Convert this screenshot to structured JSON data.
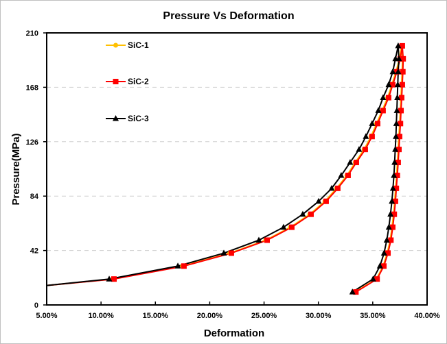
{
  "chart_data": {
    "type": "line",
    "title": "Pressure Vs Deformation",
    "xlabel": "Deformation",
    "ylabel": "Pressure(MPa)",
    "xlim": [
      5,
      40
    ],
    "ylim": [
      0,
      210
    ],
    "x_ticks": [
      "5.00%",
      "10.00%",
      "15.00%",
      "20.00%",
      "25.00%",
      "30.00%",
      "35.00%",
      "40.00%"
    ],
    "y_ticks": [
      "0",
      "42",
      "84",
      "126",
      "168",
      "210"
    ],
    "grid": "horizontal dashed",
    "legend_position": "top-left",
    "x_unit": "percent",
    "series": [
      {
        "name": "SiC-1",
        "color": "#FFC000",
        "marker": "circle",
        "loading": [
          [
            5.0,
            15
          ],
          [
            11.1,
            20
          ],
          [
            17.5,
            30
          ],
          [
            21.85,
            40
          ],
          [
            25.15,
            50
          ],
          [
            27.42,
            60
          ],
          [
            29.2,
            70
          ],
          [
            30.6,
            80
          ],
          [
            31.67,
            90
          ],
          [
            32.62,
            100
          ],
          [
            33.39,
            110
          ],
          [
            34.2,
            120
          ],
          [
            34.84,
            130
          ],
          [
            35.35,
            140
          ],
          [
            35.86,
            150
          ],
          [
            36.37,
            160
          ],
          [
            36.76,
            170
          ],
          [
            37.14,
            180
          ],
          [
            37.46,
            190
          ],
          [
            37.65,
            200
          ]
        ],
        "unloading": [
          [
            37.73,
            190
          ],
          [
            37.7,
            180
          ],
          [
            37.65,
            170
          ],
          [
            37.59,
            160
          ],
          [
            37.53,
            150
          ],
          [
            37.48,
            140
          ],
          [
            37.4,
            130
          ],
          [
            37.34,
            120
          ],
          [
            37.27,
            110
          ],
          [
            37.19,
            100
          ],
          [
            37.1,
            90
          ],
          [
            37.02,
            80
          ],
          [
            36.91,
            70
          ],
          [
            36.77,
            60
          ],
          [
            36.6,
            50
          ],
          [
            36.33,
            40
          ],
          [
            35.95,
            30
          ],
          [
            35.33,
            20
          ],
          [
            33.38,
            10
          ]
        ]
      },
      {
        "name": "SiC-2",
        "color": "#FF0000",
        "marker": "square",
        "loading": [
          [
            5.0,
            15
          ],
          [
            11.19,
            20
          ],
          [
            17.63,
            30
          ],
          [
            21.99,
            40
          ],
          [
            25.28,
            50
          ],
          [
            27.55,
            60
          ],
          [
            29.32,
            70
          ],
          [
            30.71,
            80
          ],
          [
            31.78,
            90
          ],
          [
            32.73,
            100
          ],
          [
            33.49,
            110
          ],
          [
            34.31,
            120
          ],
          [
            34.94,
            130
          ],
          [
            35.45,
            140
          ],
          [
            35.95,
            150
          ],
          [
            36.46,
            160
          ],
          [
            36.84,
            170
          ],
          [
            37.22,
            180
          ],
          [
            37.53,
            190
          ],
          [
            37.72,
            200
          ]
        ],
        "unloading": [
          [
            37.8,
            190
          ],
          [
            37.77,
            180
          ],
          [
            37.72,
            170
          ],
          [
            37.66,
            160
          ],
          [
            37.6,
            150
          ],
          [
            37.55,
            140
          ],
          [
            37.47,
            130
          ],
          [
            37.41,
            120
          ],
          [
            37.34,
            110
          ],
          [
            37.26,
            100
          ],
          [
            37.17,
            90
          ],
          [
            37.09,
            80
          ],
          [
            36.98,
            70
          ],
          [
            36.84,
            60
          ],
          [
            36.67,
            50
          ],
          [
            36.4,
            40
          ],
          [
            36.02,
            30
          ],
          [
            35.4,
            20
          ],
          [
            33.45,
            10
          ]
        ]
      },
      {
        "name": "SiC-3",
        "color": "#000000",
        "marker": "triangle",
        "loading": [
          [
            5.0,
            15
          ],
          [
            10.75,
            20
          ],
          [
            17.07,
            30
          ],
          [
            21.3,
            40
          ],
          [
            24.52,
            50
          ],
          [
            26.79,
            60
          ],
          [
            28.56,
            70
          ],
          [
            30.02,
            80
          ],
          [
            31.22,
            90
          ],
          [
            32.1,
            100
          ],
          [
            32.92,
            110
          ],
          [
            33.74,
            120
          ],
          [
            34.37,
            130
          ],
          [
            34.94,
            140
          ],
          [
            35.51,
            150
          ],
          [
            35.95,
            160
          ],
          [
            36.46,
            170
          ],
          [
            36.84,
            180
          ],
          [
            37.09,
            190
          ],
          [
            37.34,
            200
          ]
        ],
        "unloading": [
          [
            37.41,
            190
          ],
          [
            37.34,
            180
          ],
          [
            37.3,
            170
          ],
          [
            37.26,
            160
          ],
          [
            37.22,
            150
          ],
          [
            37.17,
            140
          ],
          [
            37.13,
            130
          ],
          [
            37.07,
            120
          ],
          [
            37.01,
            110
          ],
          [
            36.95,
            100
          ],
          [
            36.86,
            90
          ],
          [
            36.76,
            80
          ],
          [
            36.63,
            70
          ],
          [
            36.48,
            60
          ],
          [
            36.29,
            50
          ],
          [
            36.04,
            40
          ],
          [
            35.66,
            30
          ],
          [
            35.03,
            20
          ],
          [
            33.13,
            10
          ]
        ]
      }
    ]
  }
}
